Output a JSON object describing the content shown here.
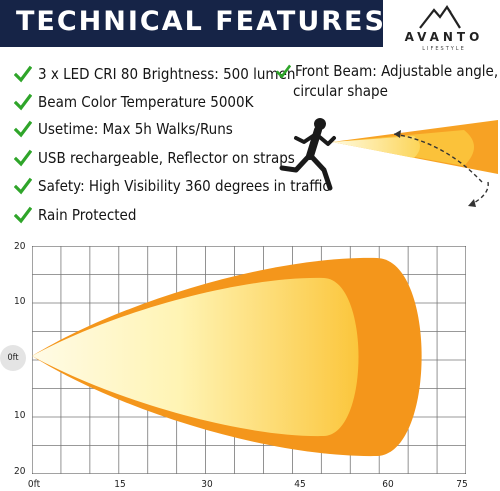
{
  "banner": {
    "title": "TECHNICAL FEATURES",
    "bg": "#162447"
  },
  "logo": {
    "name": "AVANTO",
    "subtitle": "LIFESTYLE"
  },
  "features": [
    "3 x LED CRI 80 Brightness: 500 lumen",
    "Beam Color Temperature 5000K",
    "Usetime: Max 5h Walks/Runs",
    "USB rechargeable, Reflector on straps",
    "Safety: High Visibility 360 degrees in traffic",
    "Rain Protected"
  ],
  "beam_note": {
    "line1": "Front Beam: Adjustable angle,",
    "line2": "circular shape"
  },
  "grid": {
    "y_labels": [
      "20",
      "10",
      "0ft",
      "10",
      "20"
    ],
    "x_labels": [
      "0ft",
      "15",
      "30",
      "45",
      "60",
      "75"
    ]
  },
  "colors": {
    "check": "#2fa52a",
    "beam_outer": "#f39a1e",
    "beam_inner": "#fbc23a",
    "beam_light": "#fff3b0"
  }
}
